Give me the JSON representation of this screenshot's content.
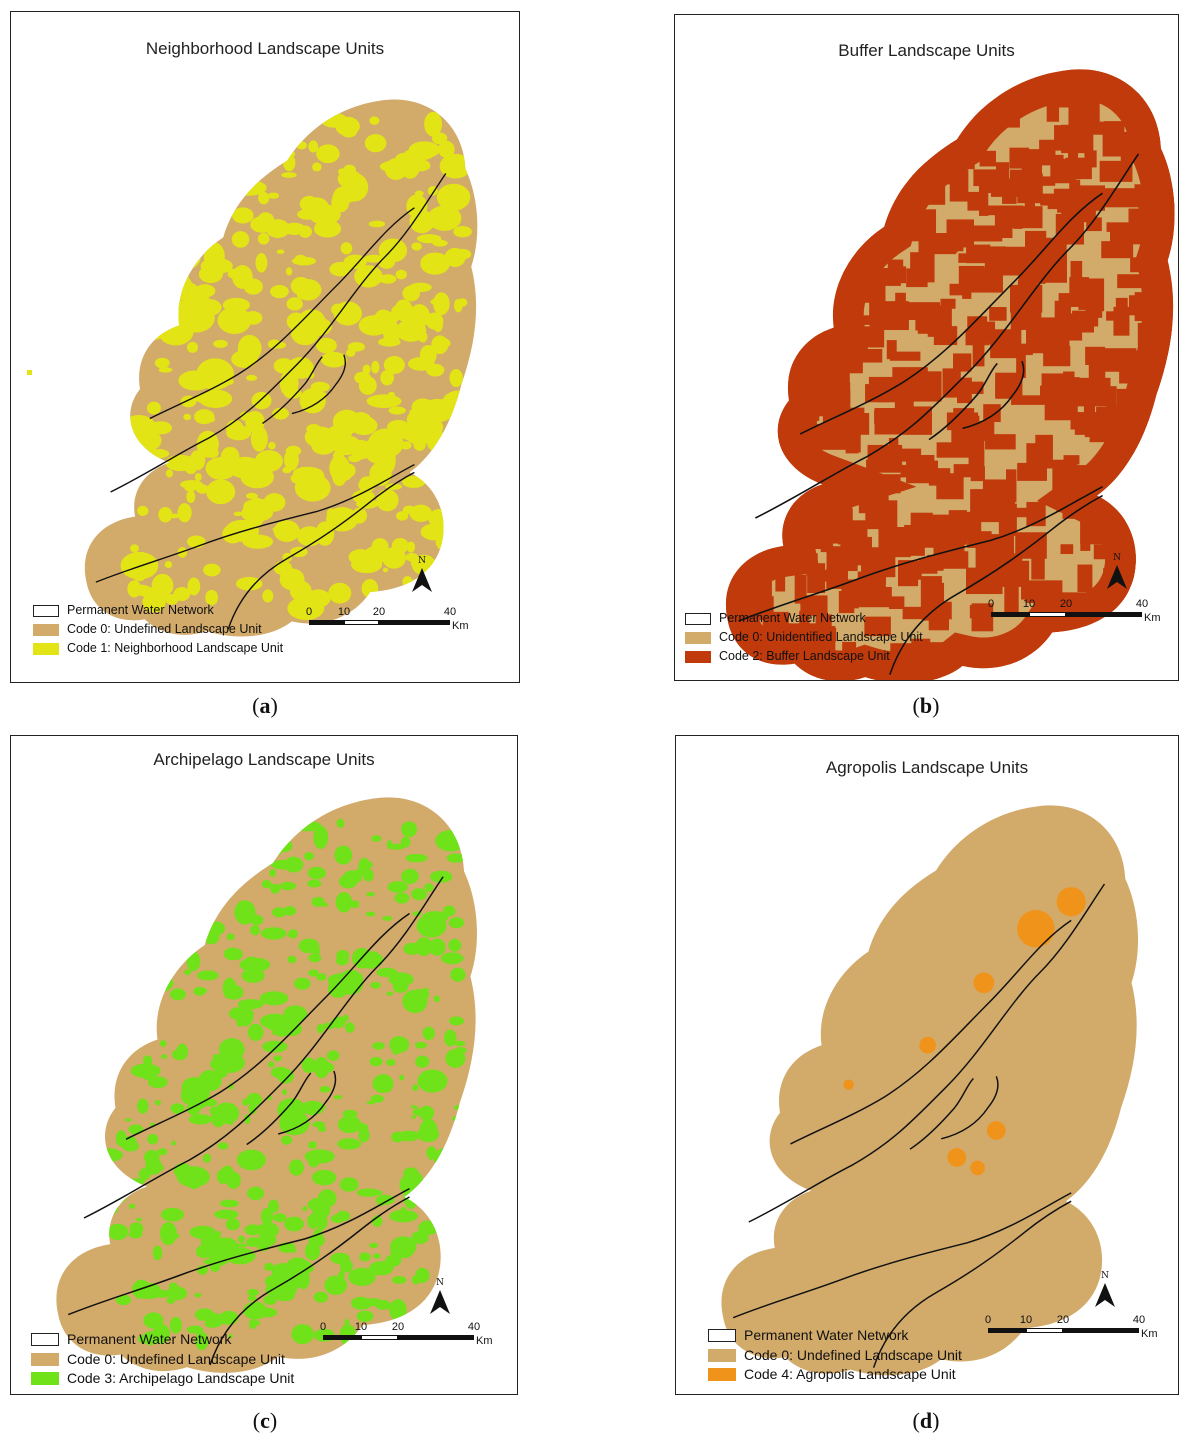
{
  "common": {
    "water_network_label": "Permanent Water Network",
    "north_label": "N",
    "scale_ticks": [
      "0",
      "10",
      "20",
      "40"
    ],
    "scale_unit": "Km"
  },
  "colors": {
    "land": "#d2aa6a",
    "water": "#111111",
    "neighborhood": "#e2e415",
    "buffer": "#c03a0b",
    "archipelago": "#6fe21a",
    "agropolis": "#f0931a"
  },
  "panels": [
    {
      "id": "a",
      "title": "Neighborhood Landscape Units",
      "legend": {
        "code0": "Code 0: Undefined Landscape Unit",
        "unit": "Code 1: Neighborhood Landscape Unit"
      },
      "caption_open": "(",
      "caption_letter": "a",
      "caption_close": ")"
    },
    {
      "id": "b",
      "title": "Buffer Landscape Units",
      "legend": {
        "code0": "Code 0: Unidentified Landscape Unit",
        "unit": "Code 2: Buffer Landscape Unit"
      },
      "caption_open": "(",
      "caption_letter": "b",
      "caption_close": ")"
    },
    {
      "id": "c",
      "title": "Archipelago Landscape Units",
      "legend": {
        "code0": "Code 0: Undefined Landscape Unit",
        "unit": "Code 3: Archipelago Landscape Unit"
      },
      "caption_open": "(",
      "caption_letter": "c",
      "caption_close": ")"
    },
    {
      "id": "d",
      "title": "Agropolis Landscape Units",
      "legend": {
        "code0": "Code 0: Undefined Landscape Unit",
        "unit": "Code 4: Agropolis Landscape Unit"
      },
      "caption_open": "(",
      "caption_letter": "d",
      "caption_close": ")"
    }
  ]
}
